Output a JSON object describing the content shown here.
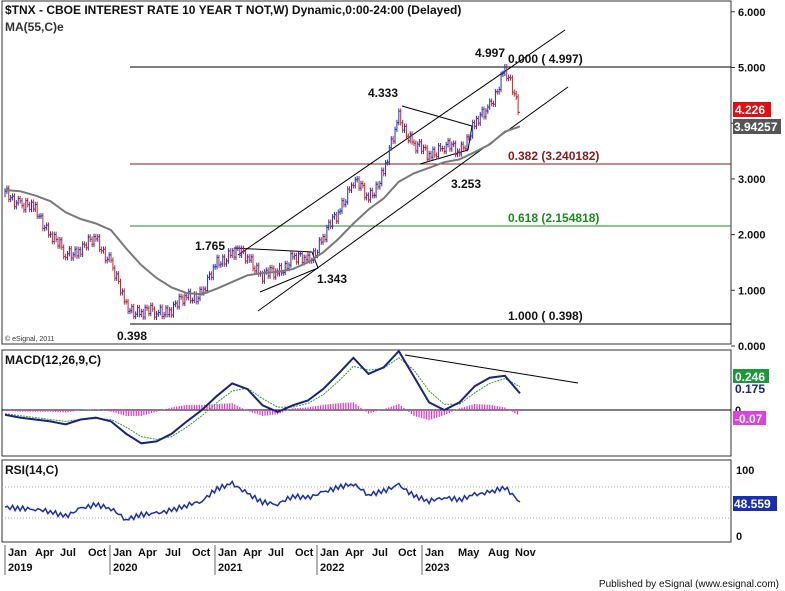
{
  "header": {
    "title": "$TNX - CBOE INTEREST RATE 10 YEAR T NOT,W) Dynamic,0:00-24:00 (Delayed)",
    "ma_label": "MA(55,C)e"
  },
  "footer": {
    "copyright": "© eSignal, 2011",
    "published": "Published by eSignal (www.esignal.com)"
  },
  "colors": {
    "price_up": "#2233bb",
    "price_down": "#cc2222",
    "ma": "#7a7a7a",
    "fib_0382": "#8b1a1a",
    "fib_0618": "#1e8a1e",
    "macd": "#1a237e",
    "signal": "#2e9e2e",
    "histogram": "#e040c8",
    "rsi": "#1a2fb0",
    "last_price_tag": "#dd1111",
    "ma_tag": "#555555",
    "macd_tag": "#1a9a3a",
    "hist_tag": "#e040e0"
  },
  "chart_data": [
    {
      "type": "candlestick",
      "title": "$TNX - CBOE INTEREST RATE 10 YEAR T NOT,W) Dynamic,0:00-24:00 (Delayed)",
      "ylim": [
        0,
        6
      ],
      "yticks": [
        "0.000",
        "1.000",
        "2.000",
        "3.000",
        "4.000",
        "5.000",
        "6.000"
      ],
      "series": [
        {
          "name": "$TNX",
          "x": [
            "2019-01",
            "2019-03",
            "2019-05",
            "2019-07",
            "2019-08",
            "2019-10",
            "2019-12",
            "2020-02",
            "2020-03",
            "2020-05",
            "2020-07",
            "2020-08",
            "2020-10",
            "2020-12",
            "2021-02",
            "2021-03",
            "2021-05",
            "2021-07",
            "2021-08",
            "2021-10",
            "2021-12",
            "2022-02",
            "2022-03",
            "2022-05",
            "2022-07",
            "2022-08",
            "2022-10",
            "2022-12",
            "2023-01",
            "2023-03",
            "2023-05",
            "2023-07",
            "2023-08",
            "2023-10",
            "2023-11"
          ],
          "values": [
            2.72,
            2.59,
            2.4,
            2.06,
            1.6,
            1.79,
            1.88,
            1.53,
            0.65,
            0.65,
            0.58,
            0.7,
            0.85,
            0.95,
            1.45,
            1.72,
            1.6,
            1.3,
            1.3,
            1.6,
            1.5,
            1.95,
            2.4,
            3.0,
            2.65,
            3.1,
            4.1,
            3.6,
            3.45,
            3.6,
            3.5,
            3.95,
            4.3,
            4.95,
            4.226
          ]
        },
        {
          "name": "MA(55,C)e",
          "x": [
            "2019-01",
            "2019-03",
            "2019-05",
            "2019-07",
            "2019-08",
            "2019-10",
            "2019-12",
            "2020-02",
            "2020-03",
            "2020-05",
            "2020-07",
            "2020-08",
            "2020-10",
            "2020-12",
            "2021-02",
            "2021-03",
            "2021-05",
            "2021-07",
            "2021-08",
            "2021-10",
            "2021-12",
            "2022-02",
            "2022-03",
            "2022-05",
            "2022-07",
            "2022-08",
            "2022-10",
            "2022-12",
            "2023-01",
            "2023-03",
            "2023-05",
            "2023-07",
            "2023-08",
            "2023-10",
            "2023-11"
          ],
          "values": [
            2.8,
            2.78,
            2.7,
            2.6,
            2.4,
            2.28,
            2.2,
            2.08,
            1.75,
            1.45,
            1.22,
            1.05,
            0.95,
            0.93,
            1.03,
            1.15,
            1.27,
            1.31,
            1.33,
            1.38,
            1.5,
            1.68,
            1.92,
            2.2,
            2.45,
            2.65,
            2.95,
            3.1,
            3.2,
            3.3,
            3.35,
            3.48,
            3.62,
            3.85,
            3.94257
          ]
        }
      ],
      "annotations": [
        {
          "text": "4.997",
          "value": 4.997
        },
        {
          "text": "4.333",
          "value": 4.333
        },
        {
          "text": "3.253",
          "value": 3.253
        },
        {
          "text": "1.765",
          "value": 1.765
        },
        {
          "text": "1.343",
          "value": 1.343
        },
        {
          "text": "0.398",
          "value": 0.398
        },
        {
          "text": "0.000 ( 4.997)",
          "value": 4.997
        },
        {
          "text": "0.382 (3.240182)",
          "value": 3.240182
        },
        {
          "text": "0.618 (2.154818)",
          "value": 2.154818
        },
        {
          "text": "1.000 ( 0.398)",
          "value": 0.398
        }
      ],
      "price_tags": [
        "4.226",
        "3.94257"
      ]
    },
    {
      "type": "line",
      "title": "MACD(12,26,9,C)",
      "series": [
        {
          "name": "MACD",
          "x": [
            "2019-01",
            "2019-03",
            "2019-05",
            "2019-07",
            "2019-08",
            "2019-10",
            "2019-12",
            "2020-02",
            "2020-03",
            "2020-05",
            "2020-07",
            "2020-08",
            "2020-10",
            "2020-12",
            "2021-02",
            "2021-03",
            "2021-05",
            "2021-07",
            "2021-08",
            "2021-10",
            "2021-12",
            "2022-02",
            "2022-03",
            "2022-05",
            "2022-07",
            "2022-08",
            "2022-10",
            "2022-12",
            "2023-01",
            "2023-03",
            "2023-05",
            "2023-07",
            "2023-08",
            "2023-10",
            "2023-11"
          ],
          "values": [
            -0.05,
            -0.08,
            -0.1,
            -0.12,
            -0.15,
            -0.1,
            -0.08,
            -0.12,
            -0.25,
            -0.35,
            -0.33,
            -0.25,
            -0.12,
            0.0,
            0.15,
            0.28,
            0.22,
            0.05,
            -0.02,
            0.05,
            0.1,
            0.22,
            0.38,
            0.55,
            0.38,
            0.45,
            0.62,
            0.35,
            0.08,
            0.0,
            0.08,
            0.25,
            0.34,
            0.36,
            0.175
          ]
        },
        {
          "name": "Signal",
          "x": [
            "2019-01",
            "2019-03",
            "2019-05",
            "2019-07",
            "2019-08",
            "2019-10",
            "2019-12",
            "2020-02",
            "2020-03",
            "2020-05",
            "2020-07",
            "2020-08",
            "2020-10",
            "2020-12",
            "2021-02",
            "2021-03",
            "2021-05",
            "2021-07",
            "2021-08",
            "2021-10",
            "2021-12",
            "2022-02",
            "2022-03",
            "2022-05",
            "2022-07",
            "2022-08",
            "2022-10",
            "2022-12",
            "2023-01",
            "2023-03",
            "2023-05",
            "2023-07",
            "2023-08",
            "2023-10",
            "2023-11"
          ],
          "values": [
            -0.04,
            -0.06,
            -0.08,
            -0.1,
            -0.12,
            -0.1,
            -0.09,
            -0.1,
            -0.18,
            -0.28,
            -0.31,
            -0.28,
            -0.18,
            -0.06,
            0.08,
            0.2,
            0.23,
            0.12,
            0.03,
            0.03,
            0.07,
            0.16,
            0.3,
            0.46,
            0.42,
            0.44,
            0.55,
            0.42,
            0.2,
            0.06,
            0.06,
            0.18,
            0.28,
            0.33,
            0.246
          ]
        }
      ],
      "ylim": [
        -0.45,
        0.65
      ],
      "price_tags": [
        "0.246",
        "0.175",
        "-0.07"
      ],
      "zero_label": "0"
    },
    {
      "type": "line",
      "title": "RSI(14,C)",
      "series": [
        {
          "name": "RSI",
          "x": [
            "2019-01",
            "2019-03",
            "2019-05",
            "2019-07",
            "2019-08",
            "2019-10",
            "2019-12",
            "2020-02",
            "2020-03",
            "2020-05",
            "2020-07",
            "2020-08",
            "2020-10",
            "2020-12",
            "2021-02",
            "2021-03",
            "2021-05",
            "2021-07",
            "2021-08",
            "2021-10",
            "2021-12",
            "2022-02",
            "2022-03",
            "2022-05",
            "2022-07",
            "2022-08",
            "2022-10",
            "2022-12",
            "2023-01",
            "2023-03",
            "2023-05",
            "2023-07",
            "2023-08",
            "2023-10",
            "2023-11"
          ],
          "values": [
            40,
            38,
            37,
            33,
            25,
            38,
            44,
            38,
            20,
            28,
            30,
            35,
            43,
            50,
            70,
            78,
            62,
            48,
            45,
            58,
            55,
            64,
            72,
            78,
            60,
            66,
            76,
            58,
            50,
            56,
            52,
            60,
            64,
            72,
            48.559
          ]
        }
      ],
      "ylim": [
        0,
        100
      ],
      "yticks": [
        "100",
        "0"
      ],
      "price_tags": [
        "48.559"
      ]
    }
  ],
  "x_axis": {
    "month_labels": [
      "Jan",
      "Apr",
      "Jul",
      "Oct",
      "Jan",
      "Apr",
      "Jul",
      "Oct",
      "Jan",
      "Apr",
      "Jul",
      "Oct",
      "Jan",
      "Apr",
      "Jul",
      "Oct",
      "Jan",
      "May",
      "Aug",
      "Nov"
    ],
    "year_labels": [
      "2019",
      "2020",
      "2021",
      "2022",
      "2023"
    ]
  }
}
